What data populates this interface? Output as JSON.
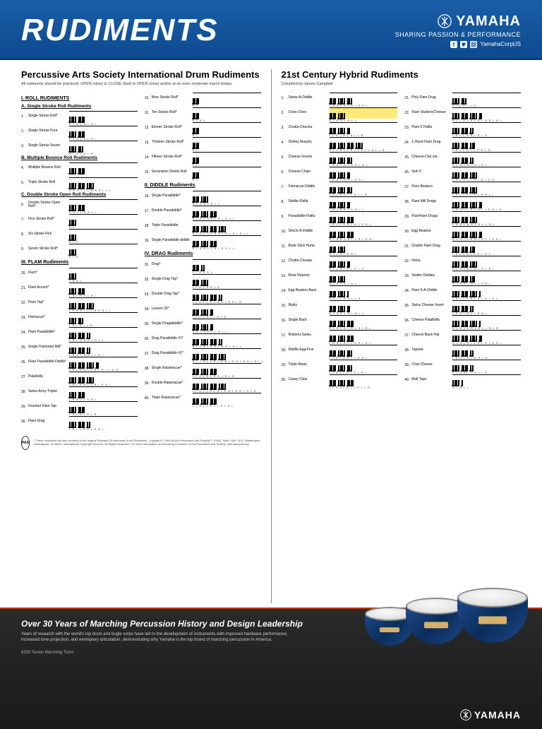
{
  "header": {
    "title": "RUDIMENTS",
    "brand_name": "YAMAHA",
    "brand_tagline": "SHARING PASSION & PERFORMANCE",
    "social_handle": "YamahaCorpUS"
  },
  "left": {
    "title": "Percussive Arts Society International Drum Rudiments",
    "subtitle": "All rudiments should be practiced: OPEN (slow) to CLOSE (fast) to OPEN (slow) and/or at an even moderate march tempo.",
    "cat1": {
      "title": "I. ROLL RUDIMENTS",
      "subA": "A. Single Stroke Roll Rudiments",
      "subB": "B. Multiple Bounce Roll Rudiments",
      "subC": "C. Double Stroke Open Roll Rudiments"
    },
    "cat2": {
      "title": "II. DIDDLE Rudiments"
    },
    "cat3": {
      "title": "III. FLAM Rudiments"
    },
    "cat4": {
      "title": "IV. DRAG Rudiments"
    },
    "col1": [
      {
        "n": "1.",
        "name": "Single Stroke Roll*",
        "s": "R L R L R L R L"
      },
      {
        "n": "2.",
        "name": "Single Stroke Four",
        "s": "R L R L  R L R L"
      },
      {
        "n": "3.",
        "name": "Single Stroke Seven",
        "s": "R L R L R L R"
      },
      {
        "n": "4.",
        "name": "Multiple Bounce Roll",
        "s": ""
      },
      {
        "n": "5.",
        "name": "Triple Stroke Roll",
        "s": "R R R L L L R R R L L L"
      },
      {
        "n": "6.",
        "name": "Double Stroke Open Roll*",
        "s": "R R L L R R L L"
      },
      {
        "n": "7.",
        "name": "Five Stroke Roll*",
        "s": "R  L"
      },
      {
        "n": "8.",
        "name": "Six Stroke Roll",
        "s": "R  L  R"
      },
      {
        "n": "9.",
        "name": "Seven Stroke Roll*",
        "s": "R  L  R"
      },
      {
        "n": "20.",
        "name": "Flam*",
        "s": "L R   R L"
      },
      {
        "n": "21.",
        "name": "Flam Accent*",
        "s": "L R  L  R  R L  R  L"
      },
      {
        "n": "22.",
        "name": "Flam Tap*",
        "s": "L R R R L L L R R R L L"
      },
      {
        "n": "23.",
        "name": "Flamacue*",
        "s": "L R L R L L R"
      },
      {
        "n": "24.",
        "name": "Flam Paradiddle*",
        "s": "L R L R R R L R L L"
      },
      {
        "n": "25.",
        "name": "Single Flammed Mill*",
        "s": "L R R L R R L L R L"
      },
      {
        "n": "26.",
        "name": "Flam Paradiddle-Diddle*",
        "s": "L R L R R L L R L R L L R R"
      },
      {
        "n": "27.",
        "name": "Pataflafla",
        "s": "L R L R R L L R L R R L"
      },
      {
        "n": "28.",
        "name": "Swiss Army Triplet",
        "s": "L R R L L R R L"
      },
      {
        "n": "29.",
        "name": "Inverted Flam Tap",
        "s": "L R L R L R L R"
      },
      {
        "n": "30.",
        "name": "Flam Drag",
        "s": "L R L L R R L R R L"
      }
    ],
    "col2": [
      {
        "n": "10.",
        "name": "Nine Stroke Roll*",
        "s": "R    L"
      },
      {
        "n": "11.",
        "name": "Ten Stroke Roll*",
        "s": "R  L   R  L"
      },
      {
        "n": "12.",
        "name": "Eleven Stroke Roll*",
        "s": "R    L"
      },
      {
        "n": "13.",
        "name": "Thirteen Stroke Roll*",
        "s": "R     L"
      },
      {
        "n": "14.",
        "name": "Fifteen Stroke Roll*",
        "s": "R      L"
      },
      {
        "n": "15.",
        "name": "Seventeen Stroke Roll",
        "s": "R   L"
      },
      {
        "n": "16.",
        "name": "Single Paradiddle*",
        "s": "R L R R L R L L"
      },
      {
        "n": "17.",
        "name": "Double Paradiddle*",
        "s": "R L R L R R L R L R L L"
      },
      {
        "n": "18.",
        "name": "Triple Paradiddle",
        "s": "R L R L R L R R L R L R L R L L"
      },
      {
        "n": "19.",
        "name": "Single Paradiddle-diddle",
        "s": "R L R R L L R L R R L L"
      },
      {
        "n": "31.",
        "name": "Drag*",
        "s": "L L R   R R L"
      },
      {
        "n": "32.",
        "name": "Single Drag Tap*",
        "s": "L L R  L  R R L  R"
      },
      {
        "n": "33.",
        "name": "Double Drag Tap*",
        "s": "L L R  L L R  L  R R L  R R L  R"
      },
      {
        "n": "34.",
        "name": "Lesson 25*",
        "s": "L L R  L  R  L L R  L  R"
      },
      {
        "n": "35.",
        "name": "Single Dragadiddle*",
        "s": "R R L R R L L R L L"
      },
      {
        "n": "36.",
        "name": "Drag Paradiddle #1*",
        "s": "R L L R L R R L R R L R L L"
      },
      {
        "n": "37.",
        "name": "Drag Paradiddle #2*",
        "s": "R L L R L L R L R R L R R L R R L R L L"
      },
      {
        "n": "38.",
        "name": "Single Ratamacue*",
        "s": "L L R L R L R R L R L R"
      },
      {
        "n": "39.",
        "name": "Double Ratamacue*",
        "s": "L L R L L R L R L R R L R R L R L R"
      },
      {
        "n": "40.",
        "name": "Triple Ratamacue*",
        "s": "L L R L L R L L R L R L"
      }
    ],
    "pas_logo": "PAS",
    "pas_text": "* These rudiments are also included in the original Standard 26 American Drum Rudiments. Copyright © 1984 by the Percussive Arts Society™, (PAS). Suite 1400, 32 E. Washington, Indianapolis, IN 46204. International Copyright Secured. All Rights Reserved. For more information on becoming a member of the Percussive Arts Society, visit www.pas.org"
  },
  "right": {
    "title": "21st Century Hybrid Rudiments",
    "subtitle": "Compiled by James Campbell",
    "col1": [
      {
        "n": "1.",
        "name": "Swiss-A-Diddle",
        "s": "L R  R L R L R L R  R L"
      },
      {
        "n": "2.",
        "name": "Choo-Choo",
        "s": "R L R R  L R L L",
        "hl": true
      },
      {
        "n": "3.",
        "name": "Chutta-Chacha",
        "s": "L L R L R L R L L R"
      },
      {
        "n": "4.",
        "name": "Shirley Murphy",
        "s": "R L L R L L R L L R L L R L L R"
      },
      {
        "n": "5.",
        "name": "Cheese Inverts",
        "s": "L R R L R L R R L R L"
      },
      {
        "n": "6.",
        "name": "Cheese Chain",
        "s": "L R R L R R L R R L"
      },
      {
        "n": "7.",
        "name": "Flamacue-Diddle",
        "s": "L R L R R L L R L L R"
      },
      {
        "n": "8.",
        "name": "Diddle-Flafla",
        "s": "L R L R R L R R L L"
      },
      {
        "n": "9.",
        "name": "Paradiddle-Flafla",
        "s": "L R L L R R L R L R R L"
      },
      {
        "n": "10.",
        "name": "Shock-A-Diddle",
        "s": "R L R R L R L L R L R R"
      },
      {
        "n": "11.",
        "name": "Book Stick Hurta",
        "s": "R L L R L R R L"
      },
      {
        "n": "12.",
        "name": "Chutta-Chease",
        "s": "R  L L R L R  L R L R"
      },
      {
        "n": "13.",
        "name": "Book Reports",
        "s": "R L R L R L R L"
      },
      {
        "n": "14.",
        "name": "Egg Beaters Back",
        "s": "R R L L R R L L R"
      },
      {
        "n": "15.",
        "name": "Ripity",
        "s": "R L R R L R L R L L"
      },
      {
        "n": "16.",
        "name": "Single Back",
        "s": "R L R L R L R L R L R L"
      },
      {
        "n": "17.",
        "name": "Robinru-Swiss",
        "s": "L R R L R L L R R L R L"
      },
      {
        "n": "18.",
        "name": "Diddle-Egg-Five",
        "s": "L L R L R R L L R R L"
      },
      {
        "n": "19.",
        "name": "Triple-Asian",
        "s": "L L R L L R L R L R L"
      },
      {
        "n": "20.",
        "name": "Casey Claw",
        "s": "L L R L L R L L R L L R"
      }
    ],
    "col2": [
      {
        "n": "21.",
        "name": "Poly Flam Drag",
        "s": "R L L R L L R"
      },
      {
        "n": "22.",
        "name": "Flam Stutters/Cheese",
        "s": "R L L R L R L R L R R L R L"
      },
      {
        "n": "23.",
        "name": "Flam 5 Flafla",
        "s": "L R L L R R L R L R"
      },
      {
        "n": "24.",
        "name": "1-Hand Flam Drag",
        "s": "L R L L R L L R R L R"
      },
      {
        "n": "25.",
        "name": "Cheese-Cha var.",
        "s": "R L R L R L R L R L"
      },
      {
        "n": "26.",
        "name": "Irish 5",
        "s": "L R L R L L R L R L R R"
      },
      {
        "n": "27.",
        "name": "Flam Beaters",
        "s": "L R L L R L R L R R L L"
      },
      {
        "n": "28.",
        "name": "Flam Mill Drags",
        "s": "L R R L L R L R L L R R L R"
      },
      {
        "n": "29.",
        "name": "FlamFlam Drags",
        "s": "L R R L R R L R L L R L"
      },
      {
        "n": "30.",
        "name": "Egg Beaters",
        "s": "R  L R L L R R  L  R L L R R L"
      },
      {
        "n": "31.",
        "name": "Double Flam Drag",
        "s": "L R L L R L R R L R L"
      },
      {
        "n": "32.",
        "name": "Herta",
        "s": "R L R L R L R L R L R L"
      },
      {
        "n": "33.",
        "name": "Stutter Diddles",
        "s": "R L R R L R L L R R L"
      },
      {
        "n": "34.",
        "name": "Flam 5-A-Diddle",
        "s": "L R L L R R L R L R L R L"
      },
      {
        "n": "35.",
        "name": "Swiss Cheese Invert",
        "s": "L R R L R L L R R L"
      },
      {
        "n": "36.",
        "name": "Cheese Pataflafla",
        "s": "R L R L R R L R L L R L R"
      },
      {
        "n": "37.",
        "name": "Cheese Back Flip",
        "s": "R L R L R L L R L R L R R L"
      },
      {
        "n": "38.",
        "name": "Tapada",
        "s": "L R R L R L R R L R"
      },
      {
        "n": "39.",
        "name": "Chut-Cheese",
        "s": "R L R R L L R L L R"
      },
      {
        "n": "40.",
        "name": "Mall Taps",
        "s": "R L R L L"
      }
    ]
  },
  "footer": {
    "title": "Over 30 Years of Marching Percussion History and Design Leadership",
    "text": "Years of research with the world's top drum and bugle corps have led to the development of instruments with improved hardware performance, increased tone projection, and exemplary articulation, demonstrating why Yamaha is the top brand of marching percussion in America.",
    "series": "8300 Series Marching Toms",
    "logo": "YAMAHA"
  },
  "colors": {
    "header_bg": "#0d4a8f",
    "accent": "#c23a1a",
    "highlight": "#ffe97a",
    "drum_blue": "#1e4a8a"
  }
}
